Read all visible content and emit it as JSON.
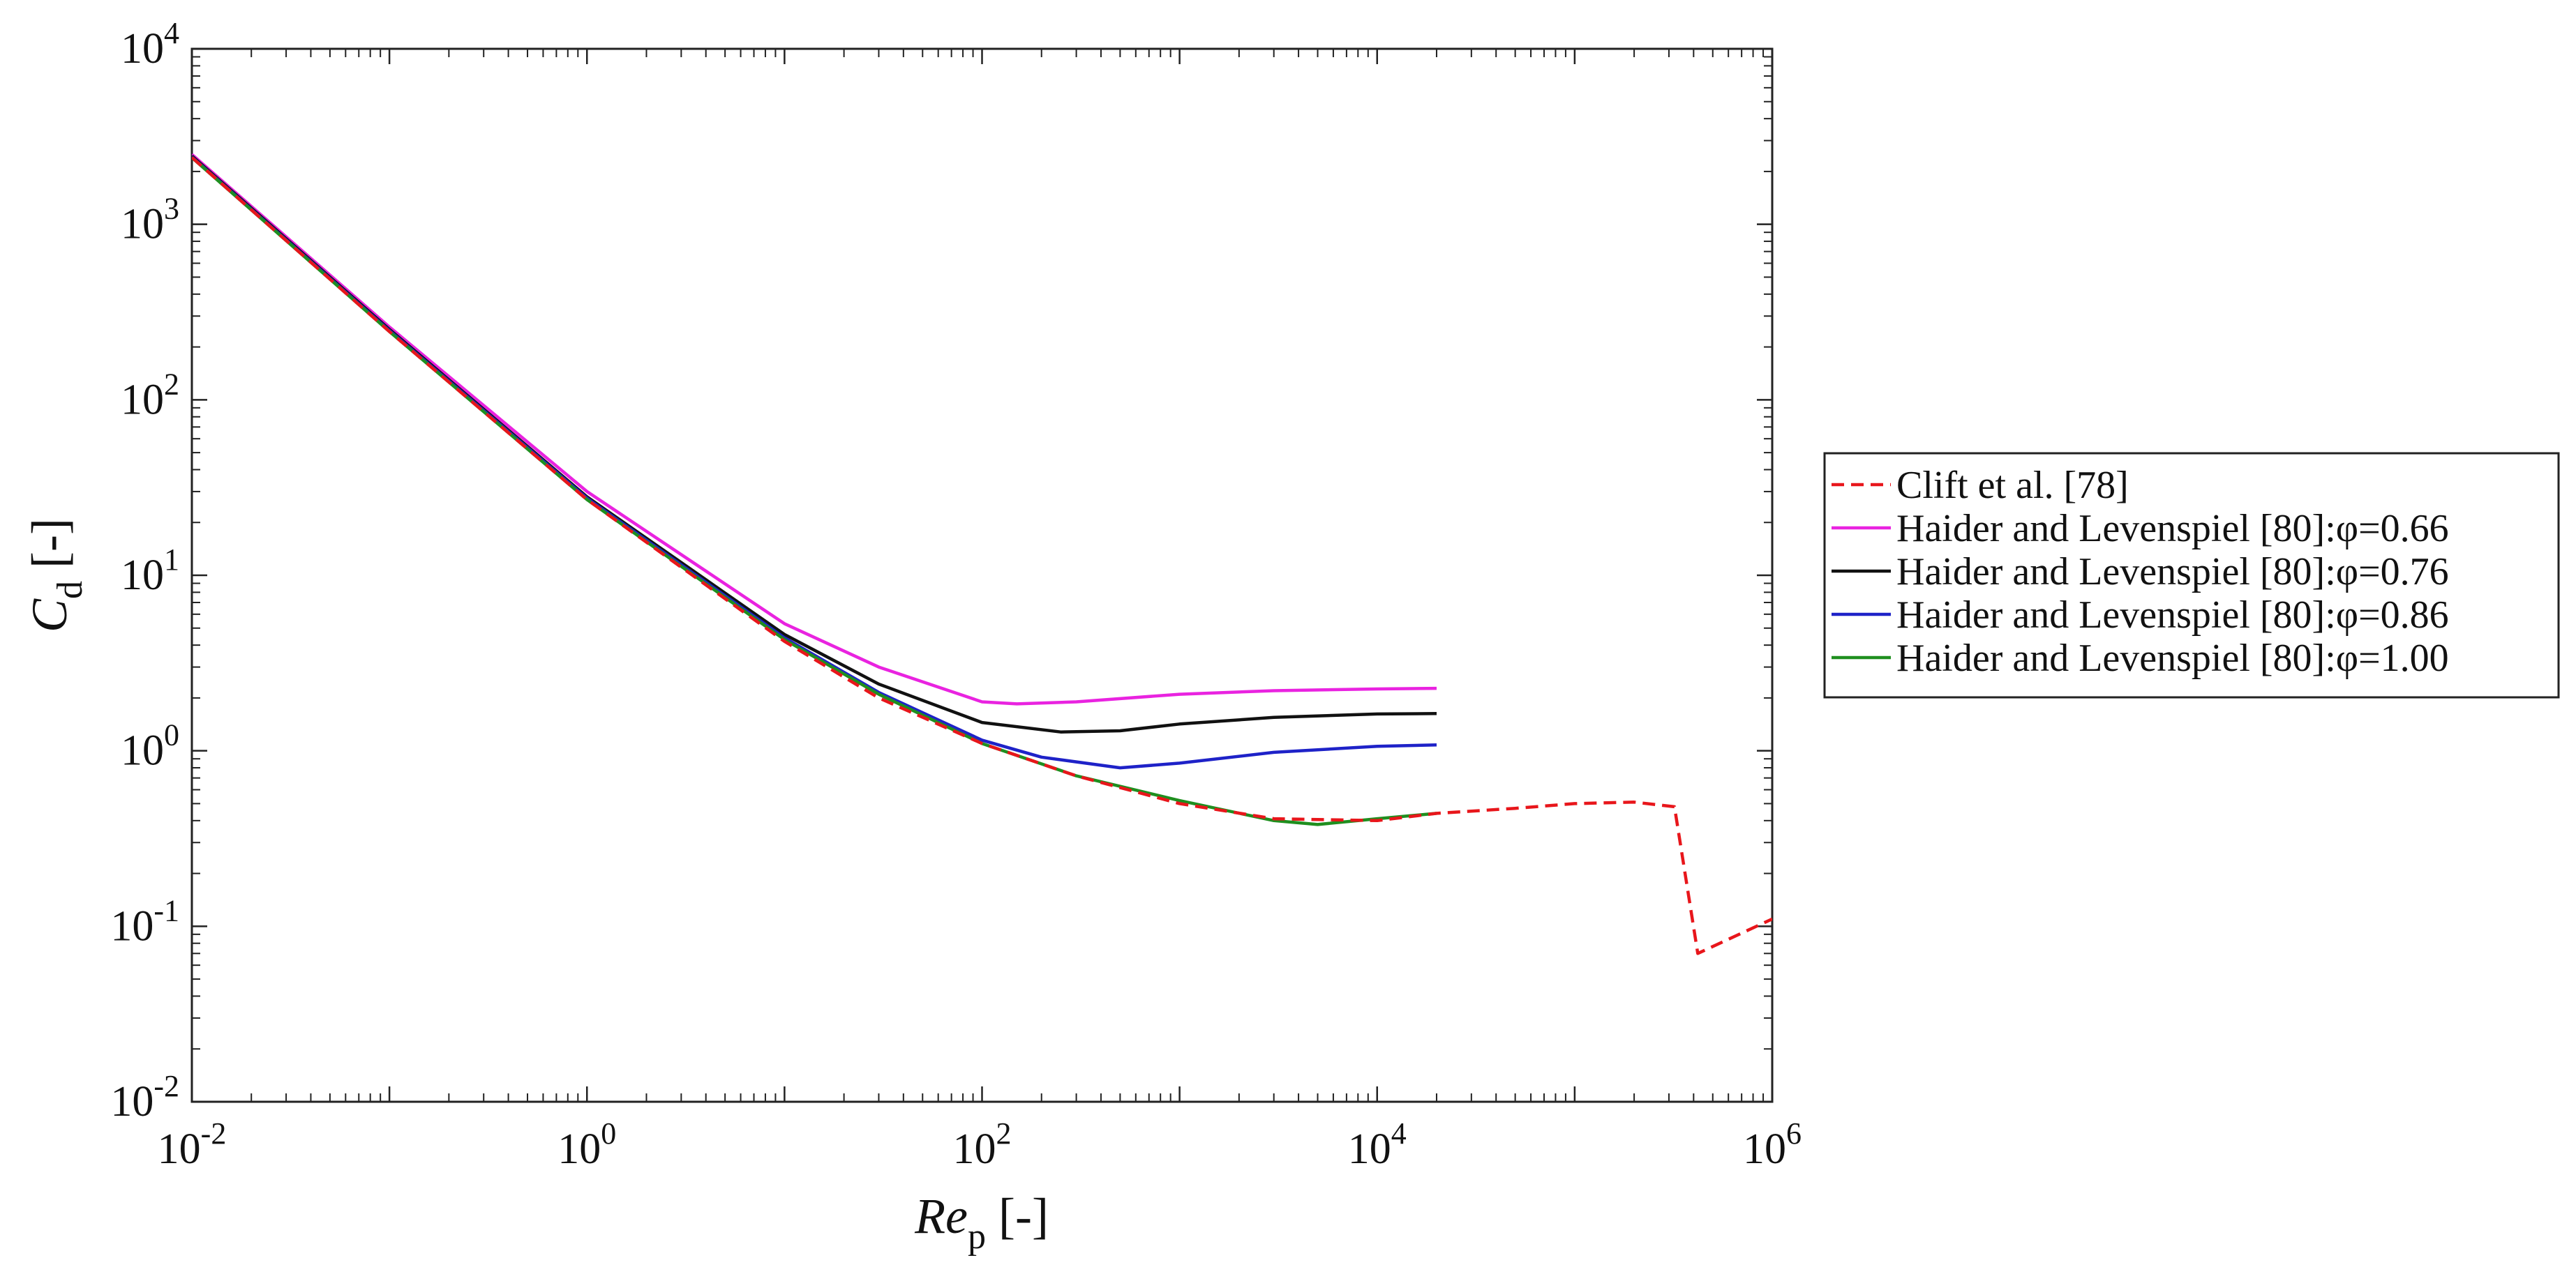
{
  "chart_data": {
    "type": "line",
    "title": "",
    "xlabel": {
      "main": "Re",
      "sub": "p",
      "unit": " [-]"
    },
    "ylabel": {
      "main": "C",
      "sub": "d",
      "unit": " [-]"
    },
    "x_scale": "log",
    "y_scale": "log",
    "xlim": [
      0.01,
      1000000
    ],
    "ylim": [
      0.01,
      10000
    ],
    "x_ticks": [
      {
        "base": "10",
        "exp": "-2",
        "value": 0.01
      },
      {
        "base": "10",
        "exp": "0",
        "value": 1
      },
      {
        "base": "10",
        "exp": "2",
        "value": 100
      },
      {
        "base": "10",
        "exp": "4",
        "value": 10000
      },
      {
        "base": "10",
        "exp": "6",
        "value": 1000000
      }
    ],
    "y_ticks": [
      {
        "base": "10",
        "exp": "-2",
        "value": 0.01
      },
      {
        "base": "10",
        "exp": "-1",
        "value": 0.1
      },
      {
        "base": "10",
        "exp": "0",
        "value": 1
      },
      {
        "base": "10",
        "exp": "1",
        "value": 10
      },
      {
        "base": "10",
        "exp": "2",
        "value": 100
      },
      {
        "base": "10",
        "exp": "3",
        "value": 1000
      },
      {
        "base": "10",
        "exp": "4",
        "value": 10000
      }
    ],
    "grid": false,
    "legend_position": "outside-right",
    "series": [
      {
        "name": "Clift et al. [78]",
        "color": "#e8161b",
        "dash": true,
        "points": [
          [
            0.01,
            2405
          ],
          [
            0.1,
            245
          ],
          [
            1,
            27
          ],
          [
            10,
            4.2
          ],
          [
            30,
            2.0
          ],
          [
            100,
            1.1
          ],
          [
            300,
            0.72
          ],
          [
            1000,
            0.5
          ],
          [
            3000,
            0.41
          ],
          [
            10000,
            0.4
          ],
          [
            20000,
            0.44
          ],
          [
            50000,
            0.47
          ],
          [
            100000,
            0.5
          ],
          [
            200000,
            0.51
          ],
          [
            320000,
            0.48
          ],
          [
            420000,
            0.07
          ],
          [
            1000000,
            0.11
          ]
        ]
      },
      {
        "name": "Haider and Levenspiel [80]:φ=0.66",
        "color": "#e923e0",
        "dash": false,
        "points": [
          [
            0.01,
            2500
          ],
          [
            0.1,
            260
          ],
          [
            1,
            30
          ],
          [
            10,
            5.3
          ],
          [
            30,
            3.0
          ],
          [
            100,
            1.9
          ],
          [
            150,
            1.85
          ],
          [
            300,
            1.9
          ],
          [
            1000,
            2.1
          ],
          [
            3000,
            2.2
          ],
          [
            10000,
            2.25
          ],
          [
            20000,
            2.27
          ]
        ]
      },
      {
        "name": "Haider and Levenspiel [80]:φ=0.76",
        "color": "#111111",
        "dash": false,
        "points": [
          [
            0.01,
            2450
          ],
          [
            0.1,
            252
          ],
          [
            1,
            28
          ],
          [
            10,
            4.6
          ],
          [
            30,
            2.4
          ],
          [
            100,
            1.45
          ],
          [
            250,
            1.28
          ],
          [
            500,
            1.3
          ],
          [
            1000,
            1.42
          ],
          [
            3000,
            1.55
          ],
          [
            10000,
            1.62
          ],
          [
            20000,
            1.63
          ]
        ]
      },
      {
        "name": "Haider and Levenspiel [80]:φ=0.86",
        "color": "#1e22c8",
        "dash": false,
        "points": [
          [
            0.01,
            2420
          ],
          [
            0.1,
            248
          ],
          [
            1,
            27.5
          ],
          [
            10,
            4.4
          ],
          [
            30,
            2.15
          ],
          [
            100,
            1.15
          ],
          [
            200,
            0.92
          ],
          [
            500,
            0.8
          ],
          [
            1000,
            0.85
          ],
          [
            3000,
            0.98
          ],
          [
            10000,
            1.06
          ],
          [
            20000,
            1.08
          ]
        ]
      },
      {
        "name": "Haider and Levenspiel [80]:φ=1.00",
        "color": "#1f8f1f",
        "dash": false,
        "points": [
          [
            0.01,
            2400
          ],
          [
            0.1,
            245
          ],
          [
            1,
            27
          ],
          [
            10,
            4.3
          ],
          [
            30,
            2.1
          ],
          [
            100,
            1.1
          ],
          [
            300,
            0.72
          ],
          [
            1000,
            0.52
          ],
          [
            3000,
            0.4
          ],
          [
            5000,
            0.38
          ],
          [
            10000,
            0.41
          ],
          [
            20000,
            0.44
          ]
        ]
      }
    ]
  }
}
